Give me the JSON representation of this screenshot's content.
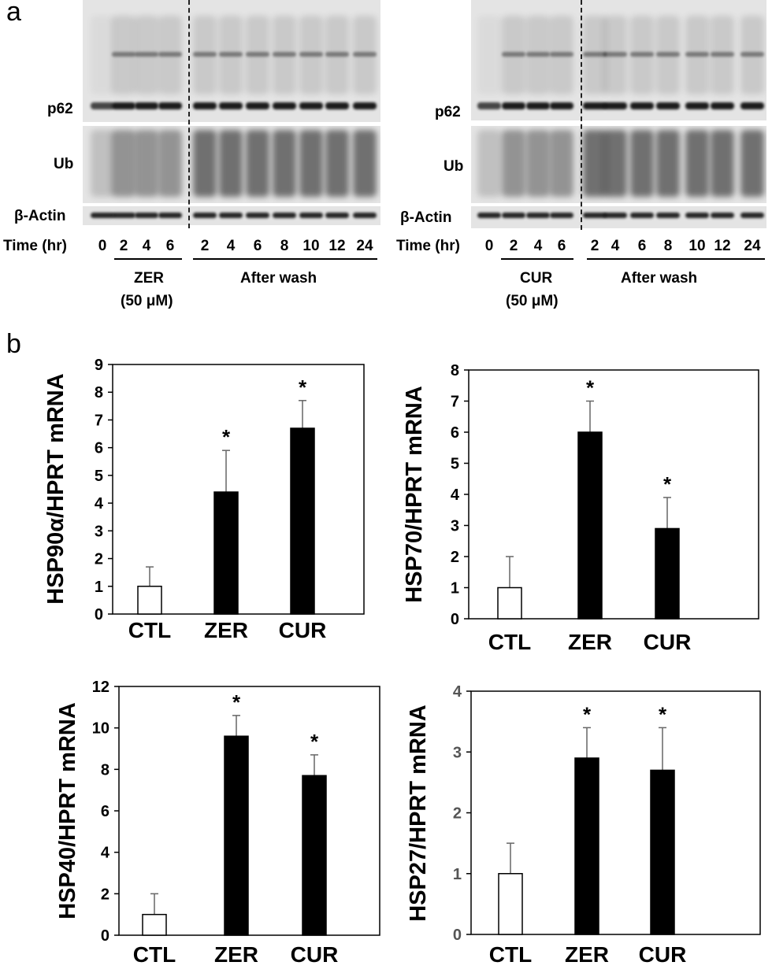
{
  "panel_a": {
    "label": "a",
    "left": {
      "markers": [
        "p62",
        "Ub",
        "β-Actin"
      ],
      "time_label": "Time (hr)",
      "lanes": [
        "0",
        "2",
        "4",
        "6",
        "2",
        "4",
        "6",
        "8",
        "10",
        "12",
        "24"
      ],
      "treatment": "ZER",
      "dose": "(50 μM)",
      "wash": "After wash"
    },
    "right": {
      "markers": [
        "p62",
        "Ub",
        "β-Actin"
      ],
      "time_label": "Time (hr)",
      "lanes": [
        "0",
        "2",
        "4",
        "6",
        "2",
        "4",
        "6",
        "8",
        "10",
        "12",
        "24"
      ],
      "treatment": "CUR",
      "dose": "(50 μM)",
      "wash": "After wash"
    }
  },
  "panel_b": {
    "label": "b"
  },
  "chart_data": [
    {
      "type": "bar",
      "ylabel": "HSP90α/HPRT mRNA",
      "categories": [
        "CTL",
        "ZER",
        "CUR"
      ],
      "values": [
        1.0,
        4.4,
        6.7
      ],
      "errors": [
        0.7,
        1.5,
        1.0
      ],
      "significant": [
        "",
        "*",
        "*"
      ],
      "ylim": [
        0,
        9
      ],
      "yticks": [
        "0",
        "1",
        "2",
        "3",
        "4",
        "5",
        "6",
        "7",
        "8",
        "9"
      ],
      "fill": [
        "#ffffff",
        "#000000",
        "#000000"
      ]
    },
    {
      "type": "bar",
      "ylabel": "HSP70/HPRT mRNA",
      "categories": [
        "CTL",
        "ZER",
        "CUR"
      ],
      "values": [
        1.0,
        6.0,
        2.9
      ],
      "errors": [
        1.0,
        1.0,
        1.0
      ],
      "significant": [
        "",
        "*",
        "*"
      ],
      "ylim": [
        0,
        8
      ],
      "yticks": [
        "0",
        "1",
        "2",
        "3",
        "4",
        "5",
        "6",
        "7",
        "8"
      ],
      "fill": [
        "#ffffff",
        "#000000",
        "#000000"
      ]
    },
    {
      "type": "bar",
      "ylabel": "HSP40/HPRT mRNA",
      "categories": [
        "CTL",
        "ZER",
        "CUR"
      ],
      "values": [
        1.0,
        9.6,
        7.7
      ],
      "errors": [
        1.0,
        1.0,
        1.0
      ],
      "significant": [
        "",
        "*",
        "*"
      ],
      "ylim": [
        0,
        12
      ],
      "yticks": [
        "0",
        "2",
        "4",
        "6",
        "8",
        "10",
        "12"
      ],
      "fill": [
        "#ffffff",
        "#000000",
        "#000000"
      ]
    },
    {
      "type": "bar",
      "ylabel": "HSP27/HPRT mRNA",
      "categories": [
        "CTL",
        "ZER",
        "CUR"
      ],
      "values": [
        1.0,
        2.9,
        2.7
      ],
      "errors": [
        0.5,
        0.5,
        0.7
      ],
      "significant": [
        "",
        "*",
        "*"
      ],
      "ylim": [
        0,
        4
      ],
      "yticks": [
        "0",
        "1",
        "2",
        "3",
        "4"
      ],
      "fill": [
        "#ffffff",
        "#000000",
        "#000000"
      ]
    }
  ]
}
